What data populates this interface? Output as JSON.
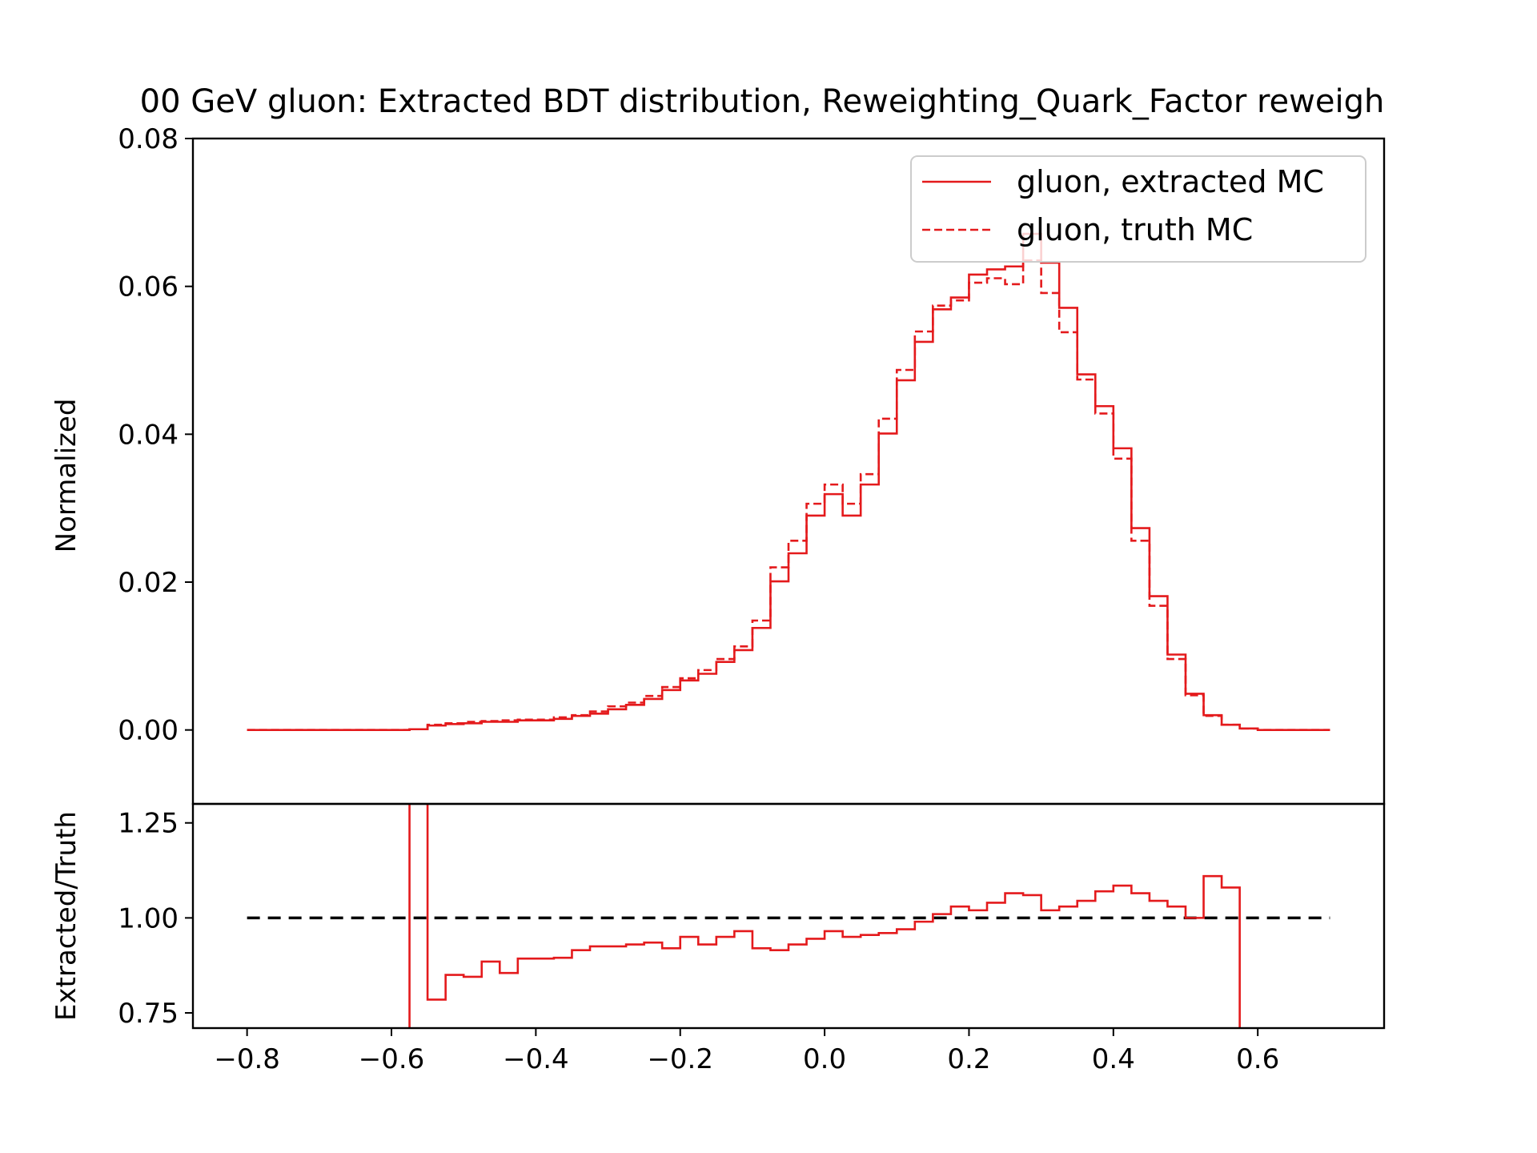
{
  "chart_data": [
    {
      "type": "line",
      "title": "00 GeV gluon: Extracted BDT distribution, Reweighting_Quark_Factor reweigh",
      "ylabel": "Normalized",
      "xlim": [
        -0.875,
        0.775
      ],
      "ylim": [
        -0.01,
        0.08
      ],
      "y_ticks": [
        0.0,
        0.02,
        0.04,
        0.06,
        0.08
      ],
      "y_tick_labels": [
        "0.00",
        "0.02",
        "0.04",
        "0.06",
        "0.08"
      ],
      "legend_position": "top-right",
      "bin_edges": [
        -0.8,
        -0.775,
        -0.75,
        -0.725,
        -0.7,
        -0.675,
        -0.65,
        -0.625,
        -0.6,
        -0.575,
        -0.55,
        -0.525,
        -0.5,
        -0.475,
        -0.45,
        -0.425,
        -0.4,
        -0.375,
        -0.35,
        -0.325,
        -0.3,
        -0.275,
        -0.25,
        -0.225,
        -0.2,
        -0.175,
        -0.15,
        -0.125,
        -0.1,
        -0.075,
        -0.05,
        -0.025,
        0.0,
        0.025,
        0.05,
        0.075,
        0.1,
        0.125,
        0.15,
        0.175,
        0.2,
        0.225,
        0.25,
        0.275,
        0.3,
        0.325,
        0.35,
        0.375,
        0.4,
        0.425,
        0.45,
        0.475,
        0.5,
        0.525,
        0.55,
        0.575,
        0.6,
        0.625,
        0.65,
        0.675,
        0.7
      ],
      "series": [
        {
          "name": "gluon, extracted MC",
          "color": "#e41a1c",
          "dash": "solid",
          "values": [
            0,
            0,
            0,
            0,
            0,
            0,
            0,
            0,
            0,
            0.0001,
            0.0006,
            0.0008,
            0.0009,
            0.0011,
            0.0011,
            0.0013,
            0.0013,
            0.0015,
            0.0019,
            0.0022,
            0.0028,
            0.0034,
            0.0042,
            0.0054,
            0.0067,
            0.0076,
            0.0092,
            0.0108,
            0.0138,
            0.0201,
            0.0239,
            0.029,
            0.0319,
            0.029,
            0.0332,
            0.0401,
            0.0473,
            0.0525,
            0.0569,
            0.0585,
            0.0616,
            0.0623,
            0.0627,
            0.0671,
            0.0632,
            0.0571,
            0.0481,
            0.0438,
            0.0381,
            0.0273,
            0.0181,
            0.0102,
            0.0049,
            0.002,
            0.0007,
            0.0002,
            0,
            0,
            0,
            0
          ]
        },
        {
          "name": "gluon, truth MC",
          "color": "#e41a1c",
          "dash": "dashed",
          "values": [
            0,
            0,
            0,
            0,
            0,
            0,
            0,
            0,
            0,
            0.0001,
            0.0007,
            0.0009,
            0.0011,
            0.0012,
            0.0013,
            0.0014,
            0.0014,
            0.0017,
            0.002,
            0.0025,
            0.0032,
            0.0037,
            0.0046,
            0.0058,
            0.007,
            0.0081,
            0.0096,
            0.0113,
            0.0148,
            0.022,
            0.0256,
            0.0306,
            0.0332,
            0.0306,
            0.0346,
            0.0421,
            0.0487,
            0.0539,
            0.0574,
            0.0581,
            0.0605,
            0.0611,
            0.0603,
            0.0635,
            0.0591,
            0.0538,
            0.0474,
            0.0428,
            0.0367,
            0.0256,
            0.0168,
            0.0096,
            0.0047,
            0.0019,
            0.0007,
            0.0002,
            0,
            0,
            0,
            0
          ]
        }
      ]
    },
    {
      "type": "line",
      "ylabel": "Extracted/Truth",
      "xlim": [
        -0.875,
        0.775
      ],
      "ylim": [
        0.71,
        1.3
      ],
      "y_ticks": [
        0.75,
        1.0,
        1.25
      ],
      "y_tick_labels": [
        "0.75",
        "1.00",
        "1.25"
      ],
      "x_ticks": [
        -0.8,
        -0.6,
        -0.4,
        -0.2,
        0.0,
        0.2,
        0.4,
        0.6
      ],
      "x_tick_labels": [
        "−0.8",
        "−0.6",
        "−0.4",
        "−0.2",
        "0.0",
        "0.2",
        "0.4",
        "0.6"
      ],
      "reference_line": 1.0,
      "reference_range": [
        -0.8,
        0.7
      ],
      "reference_color": "#000000",
      "ratio_edges": [
        -0.575,
        -0.55,
        -0.525,
        -0.5,
        -0.475,
        -0.45,
        -0.425,
        -0.4,
        -0.375,
        -0.35,
        -0.325,
        -0.3,
        -0.275,
        -0.25,
        -0.225,
        -0.2,
        -0.175,
        -0.15,
        -0.125,
        -0.1,
        -0.075,
        -0.05,
        -0.025,
        0.0,
        0.025,
        0.05,
        0.075,
        0.1,
        0.125,
        0.15,
        0.175,
        0.2,
        0.225,
        0.25,
        0.275,
        0.3,
        0.325,
        0.35,
        0.375,
        0.4,
        0.425,
        0.45,
        0.475,
        0.5,
        0.525,
        0.55,
        0.575
      ],
      "ratio_values": [
        1.6,
        0.785,
        0.85,
        0.845,
        0.885,
        0.855,
        0.893,
        0.893,
        0.895,
        0.915,
        0.925,
        0.925,
        0.93,
        0.935,
        0.92,
        0.95,
        0.93,
        0.95,
        0.965,
        0.92,
        0.915,
        0.93,
        0.945,
        0.965,
        0.95,
        0.955,
        0.96,
        0.97,
        0.99,
        1.01,
        1.03,
        1.02,
        1.04,
        1.065,
        1.06,
        1.02,
        1.03,
        1.045,
        1.07,
        1.085,
        1.065,
        1.045,
        1.03,
        1.0,
        1.11,
        1.08
      ],
      "ratio_color": "#e41a1c",
      "ratio_start_value": 0.6,
      "ratio_end_value": 0.6
    }
  ]
}
